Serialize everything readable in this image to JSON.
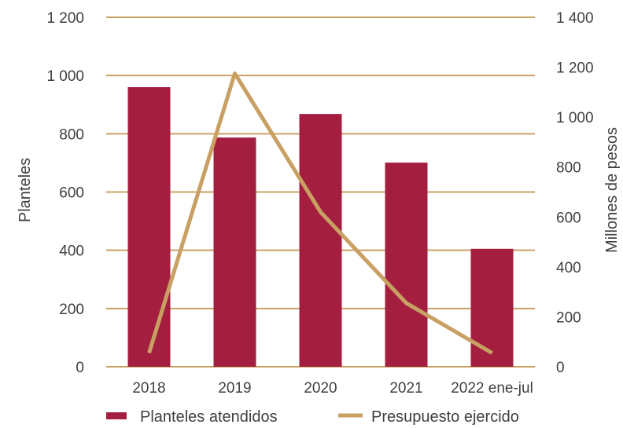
{
  "chart_data": {
    "type": "bar",
    "categories": [
      "2018",
      "2019",
      "2020",
      "2021",
      "2022 ene-jul"
    ],
    "ylabel": "Planteles",
    "y2label": "Millones de pesos",
    "ylim": [
      0,
      1200
    ],
    "y2lim": [
      0,
      1400
    ],
    "yticks": [
      0,
      200,
      400,
      600,
      800,
      1000,
      1200
    ],
    "y2ticks": [
      0,
      200,
      400,
      600,
      800,
      1000,
      1200,
      1400
    ],
    "yticklabels": [
      "0",
      "200",
      "400",
      "600",
      "800",
      "1 000",
      "1 200"
    ],
    "y2ticklabels": [
      "0",
      "200",
      "400",
      "600",
      "800",
      "1 000",
      "1 200",
      "1 400"
    ],
    "grid": true,
    "legend": "bottom",
    "series": [
      {
        "name": "Planteles atendidos",
        "type": "bar",
        "axis": "left",
        "color": "#A41F3F",
        "values": [
          960,
          787,
          868,
          701,
          405
        ]
      },
      {
        "name": "Presupuesto ejercido",
        "type": "line",
        "axis": "right",
        "color": "#C9A063",
        "values": [
          55,
          1175,
          620,
          255,
          55
        ]
      }
    ],
    "gridColor": "#C9A063"
  }
}
